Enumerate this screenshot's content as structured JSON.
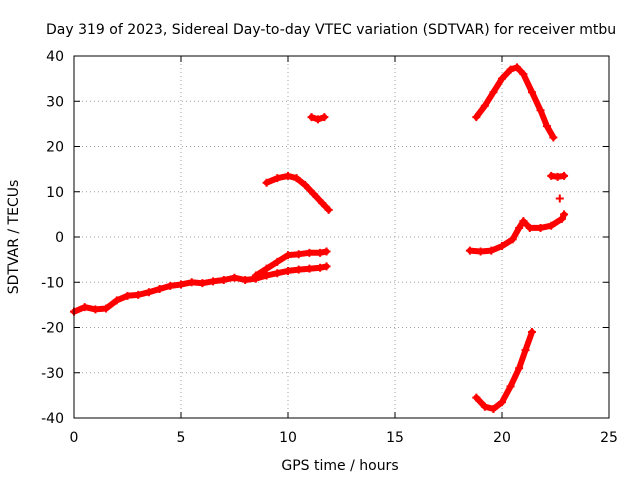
{
  "chart_data": {
    "type": "scatter",
    "title": "Day 319 of 2023, Sidereal Day-to-day VTEC variation (SDTVAR) for receiver mtbu",
    "xlabel": "GPS time / hours",
    "ylabel": "SDTVAR / TECUs",
    "xlim": [
      0,
      25
    ],
    "ylim": [
      -40,
      40
    ],
    "xticks": [
      0,
      5,
      10,
      15,
      20,
      25
    ],
    "yticks": [
      -40,
      -30,
      -20,
      -10,
      0,
      10,
      20,
      30,
      40
    ],
    "grid": true,
    "marker_color": "#ff0000",
    "series": [
      {
        "points": [
          [
            0.0,
            -16.5
          ],
          [
            0.5,
            -15.5
          ],
          [
            1.0,
            -16.0
          ],
          [
            1.5,
            -15.8
          ],
          [
            2.0,
            -14.0
          ],
          [
            2.5,
            -13.0
          ],
          [
            3.0,
            -12.8
          ],
          [
            3.5,
            -12.2
          ],
          [
            4.0,
            -11.5
          ],
          [
            4.5,
            -10.8
          ],
          [
            5.0,
            -10.5
          ],
          [
            5.5,
            -10.0
          ],
          [
            6.0,
            -10.2
          ],
          [
            6.5,
            -9.8
          ],
          [
            7.0,
            -9.5
          ],
          [
            7.5,
            -9.0
          ],
          [
            8.0,
            -9.5
          ],
          [
            8.5,
            -9.2
          ],
          [
            9.0,
            -8.5
          ],
          [
            9.5,
            -8.0
          ],
          [
            10.0,
            -7.5
          ],
          [
            10.5,
            -7.2
          ],
          [
            11.0,
            -7.0
          ],
          [
            11.5,
            -6.8
          ],
          [
            11.8,
            -6.5
          ]
        ]
      },
      {
        "points": [
          [
            8.5,
            -8.5
          ],
          [
            9.0,
            -7.0
          ],
          [
            9.5,
            -5.5
          ],
          [
            10.0,
            -4.0
          ],
          [
            10.5,
            -3.8
          ],
          [
            11.0,
            -3.5
          ],
          [
            11.5,
            -3.5
          ],
          [
            11.8,
            -3.2
          ]
        ]
      },
      {
        "points": [
          [
            9.0,
            12.0
          ],
          [
            9.5,
            13.0
          ],
          [
            10.0,
            13.5
          ],
          [
            10.4,
            13.0
          ],
          [
            10.8,
            11.5
          ],
          [
            11.2,
            9.5
          ],
          [
            11.6,
            7.5
          ],
          [
            11.9,
            6.0
          ]
        ]
      },
      {
        "points": [
          [
            11.1,
            26.5
          ],
          [
            11.4,
            26.0
          ],
          [
            11.7,
            26.5
          ]
        ]
      },
      {
        "points": [
          [
            18.5,
            -3.0
          ],
          [
            19.0,
            -3.2
          ],
          [
            19.5,
            -3.0
          ],
          [
            20.0,
            -2.0
          ],
          [
            20.5,
            -0.5
          ],
          [
            20.8,
            2.0
          ],
          [
            21.0,
            3.5
          ],
          [
            21.3,
            2.0
          ],
          [
            21.8,
            2.0
          ],
          [
            22.3,
            2.5
          ],
          [
            22.8,
            4.0
          ],
          [
            22.9,
            5.0
          ]
        ]
      },
      {
        "points": [
          [
            18.8,
            26.5
          ],
          [
            19.2,
            29.0
          ],
          [
            19.6,
            32.0
          ],
          [
            20.0,
            35.0
          ],
          [
            20.4,
            37.0
          ],
          [
            20.7,
            37.5
          ],
          [
            21.0,
            36.0
          ],
          [
            21.4,
            32.0
          ],
          [
            21.8,
            28.0
          ],
          [
            22.1,
            24.5
          ],
          [
            22.4,
            22.0
          ]
        ]
      },
      {
        "points": [
          [
            22.3,
            13.5
          ],
          [
            22.6,
            13.3
          ],
          [
            22.9,
            13.5
          ]
        ]
      },
      {
        "points": [
          [
            22.7,
            8.5
          ]
        ]
      },
      {
        "points": [
          [
            18.8,
            -35.5
          ],
          [
            19.2,
            -37.5
          ],
          [
            19.6,
            -38.0
          ],
          [
            20.0,
            -36.5
          ],
          [
            20.4,
            -33.0
          ],
          [
            20.8,
            -29.0
          ],
          [
            21.1,
            -25.0
          ],
          [
            21.4,
            -21.0
          ]
        ]
      }
    ]
  }
}
